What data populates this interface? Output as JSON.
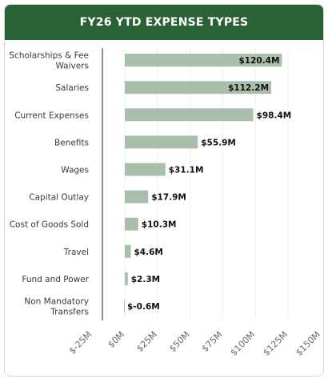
{
  "chart_data": {
    "type": "bar",
    "orientation": "horizontal",
    "title": "FY26 YTD EXPENSE TYPES",
    "categories": [
      "Scholarships & Fee Waivers",
      "Salaries",
      "Current Expenses",
      "Benefits",
      "Wages",
      "Capital Outlay",
      "Cost of Goods Sold",
      "Travel",
      "Fund and Power",
      "Non Mandatory Transfers"
    ],
    "category_lines": [
      [
        "Scholarships & Fee",
        "Waivers"
      ],
      [
        "Salaries"
      ],
      [
        "Current Expenses"
      ],
      [
        "Benefits"
      ],
      [
        "Wages"
      ],
      [
        "Capital Outlay"
      ],
      [
        "Cost of Goods Sold"
      ],
      [
        "Travel"
      ],
      [
        "Fund and Power"
      ],
      [
        "Non Mandatory",
        "Transfers"
      ]
    ],
    "values": [
      120.4,
      112.2,
      98.4,
      55.9,
      31.1,
      17.9,
      10.3,
      4.6,
      2.3,
      -0.6
    ],
    "data_labels": [
      "$120.4M",
      "$112.2M",
      "$98.4M",
      "$55.9M",
      "$31.1M",
      "$17.9M",
      "$10.3M",
      "$4.6M",
      "$2.3M",
      "$-0.6M"
    ],
    "xlim": [
      -25,
      150
    ],
    "x_ticks": [
      -25,
      0,
      25,
      50,
      75,
      100,
      125,
      150
    ],
    "x_tick_labels": [
      "$-25M",
      "$0M",
      "$25M",
      "$50M",
      "$75M",
      "$100M",
      "$125M",
      "$150M"
    ],
    "grid": true,
    "legend": "none",
    "colors": {
      "bar": "#a9bfac",
      "header": "#2a6236",
      "header_text": "#ffffff",
      "grid": "#eeeeee",
      "axis": "#222222"
    }
  }
}
